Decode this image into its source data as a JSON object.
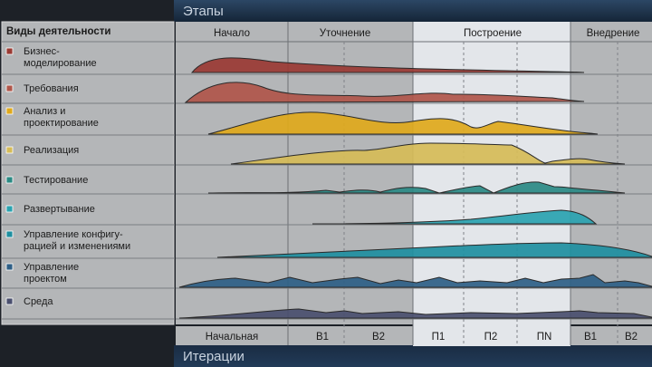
{
  "header": {
    "title": "Этапы"
  },
  "footer": {
    "title": "Итерации"
  },
  "sidebar": {
    "title": "Виды деятельности"
  },
  "phases": [
    "Начало",
    "Уточнение",
    "Построение",
    "Внедрение"
  ],
  "iterations": [
    "Начальная",
    "B1",
    "B2",
    "П1",
    "П2",
    "ПN",
    "B1",
    "B2"
  ],
  "disciplines": [
    {
      "lines": [
        "Бизнес-",
        "моделирование"
      ],
      "color": "#9a3a33"
    },
    {
      "lines": [
        "Требования"
      ],
      "color": "#b0564a"
    },
    {
      "lines": [
        "Анализ и",
        "проектирование"
      ],
      "color": "#e0a91b"
    },
    {
      "lines": [
        "Реализация"
      ],
      "color": "#d6bc57"
    },
    {
      "lines": [
        "Тестирование"
      ],
      "color": "#2a8a84"
    },
    {
      "lines": [
        "Развертывание"
      ],
      "color": "#2aa3b0"
    },
    {
      "lines": [
        "Управление конфигу-",
        "рацией и изменениями"
      ],
      "color": "#1e8fa0"
    },
    {
      "lines": [
        "Управление",
        "проектом"
      ],
      "color": "#2e5f86"
    },
    {
      "lines": [
        "Среда"
      ],
      "color": "#4a4f6e"
    }
  ],
  "colors": {
    "panel": "#b4b6b8",
    "highlight": "#e3e6ea",
    "header_bg": "#1b2f47",
    "footer_bg": "#1b2f47"
  }
}
